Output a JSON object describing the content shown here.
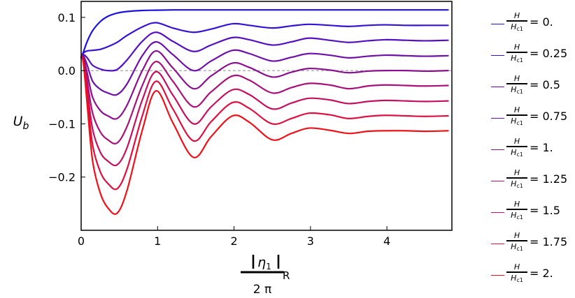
{
  "chart_data": {
    "type": "line",
    "title": "",
    "ylabel": "U",
    "ylabel_sub": "b",
    "xlabel_frac": {
      "numerator": "η",
      "numerator_sub": "1",
      "subscript": "R",
      "denominator": "2 π"
    },
    "xlim": [
      0,
      4.85
    ],
    "ylim": [
      -0.3,
      0.13
    ],
    "xticks": [
      {
        "value": 0,
        "label": "0"
      },
      {
        "value": 1,
        "label": "1"
      },
      {
        "value": 2,
        "label": "2"
      },
      {
        "value": 3,
        "label": "3"
      },
      {
        "value": 4,
        "label": "4"
      }
    ],
    "yticks": [
      {
        "value": 0.1,
        "label": "0.1"
      },
      {
        "value": 0.0,
        "label": "0.0"
      },
      {
        "value": -0.1,
        "label": "-0.1"
      },
      {
        "value": -0.2,
        "label": "-0.2"
      }
    ],
    "reference_line": {
      "y": 0,
      "style": "dashed",
      "color": "#999999"
    },
    "legend_placement": "right",
    "legend_ratio": {
      "numerator": "H",
      "denominator": "H",
      "denominator_sub": "c1"
    },
    "x": [
      0,
      0.03,
      0.08,
      0.15,
      0.25,
      0.35,
      0.47,
      0.6,
      0.8,
      0.98,
      1.2,
      1.47,
      1.7,
      1.98,
      2.2,
      2.5,
      2.75,
      2.98,
      3.25,
      3.5,
      3.75,
      3.98,
      4.25,
      4.5,
      4.8
    ],
    "series": [
      {
        "name": "0.",
        "color": "#1a10e0",
        "values": [
          0.025,
          0.035,
          0.055,
          0.075,
          0.092,
          0.102,
          0.108,
          0.111,
          0.113,
          0.1135,
          0.114,
          0.114,
          0.114,
          0.114,
          0.114,
          0.114,
          0.114,
          0.114,
          0.114,
          0.114,
          0.114,
          0.114,
          0.114,
          0.114,
          0.114
        ]
      },
      {
        "name": "0.25",
        "color": "#3610d4",
        "values": [
          0.025,
          0.033,
          0.037,
          0.038,
          0.04,
          0.045,
          0.053,
          0.066,
          0.082,
          0.09,
          0.08,
          0.072,
          0.078,
          0.088,
          0.085,
          0.08,
          0.084,
          0.087,
          0.085,
          0.083,
          0.085,
          0.086,
          0.085,
          0.085,
          0.085
        ]
      },
      {
        "name": "0.5",
        "color": "#5410c0",
        "values": [
          0.025,
          0.03,
          0.024,
          0.01,
          0.003,
          0.0,
          0.002,
          0.02,
          0.055,
          0.072,
          0.055,
          0.036,
          0.048,
          0.062,
          0.058,
          0.048,
          0.054,
          0.061,
          0.057,
          0.053,
          0.056,
          0.058,
          0.057,
          0.056,
          0.057
        ]
      },
      {
        "name": "0.75",
        "color": "#6e10a8",
        "values": [
          0.025,
          0.028,
          0.01,
          -0.02,
          -0.035,
          -0.042,
          -0.045,
          -0.025,
          0.028,
          0.054,
          0.03,
          0.0,
          0.018,
          0.038,
          0.032,
          0.018,
          0.025,
          0.032,
          0.029,
          0.024,
          0.027,
          0.029,
          0.028,
          0.027,
          0.028
        ]
      },
      {
        "name": "1.",
        "color": "#8a1090",
        "values": [
          0.025,
          0.025,
          -0.005,
          -0.05,
          -0.075,
          -0.085,
          -0.09,
          -0.065,
          0.0,
          0.037,
          0.005,
          -0.034,
          -0.01,
          0.014,
          0.006,
          -0.012,
          -0.003,
          0.004,
          0.001,
          -0.004,
          -0.001,
          0.0,
          0.0,
          -0.001,
          0.0
        ]
      },
      {
        "name": "1.25",
        "color": "#a8107a",
        "values": [
          0.025,
          0.022,
          -0.02,
          -0.08,
          -0.115,
          -0.13,
          -0.136,
          -0.105,
          -0.028,
          0.017,
          -0.02,
          -0.068,
          -0.04,
          -0.01,
          -0.018,
          -0.042,
          -0.032,
          -0.024,
          -0.027,
          -0.034,
          -0.029,
          -0.027,
          -0.028,
          -0.029,
          -0.028
        ]
      },
      {
        "name": "1.5",
        "color": "#c41060",
        "values": [
          0.025,
          0.019,
          -0.035,
          -0.11,
          -0.153,
          -0.17,
          -0.177,
          -0.145,
          -0.055,
          -0.002,
          -0.046,
          -0.1,
          -0.068,
          -0.036,
          -0.045,
          -0.072,
          -0.061,
          -0.052,
          -0.055,
          -0.062,
          -0.058,
          -0.056,
          -0.057,
          -0.058,
          -0.057
        ]
      },
      {
        "name": "1.75",
        "color": "#de1040",
        "values": [
          0.025,
          0.016,
          -0.05,
          -0.14,
          -0.19,
          -0.212,
          -0.222,
          -0.185,
          -0.085,
          -0.02,
          -0.072,
          -0.132,
          -0.096,
          -0.06,
          -0.071,
          -0.1,
          -0.09,
          -0.08,
          -0.083,
          -0.09,
          -0.086,
          -0.084,
          -0.085,
          -0.086,
          -0.085
        ]
      },
      {
        "name": "2.",
        "color": "#f01018",
        "values": [
          0.025,
          0.013,
          -0.065,
          -0.17,
          -0.23,
          -0.258,
          -0.268,
          -0.225,
          -0.112,
          -0.038,
          -0.098,
          -0.163,
          -0.124,
          -0.085,
          -0.097,
          -0.13,
          -0.118,
          -0.108,
          -0.112,
          -0.118,
          -0.114,
          -0.113,
          -0.113,
          -0.114,
          -0.113
        ]
      }
    ]
  }
}
